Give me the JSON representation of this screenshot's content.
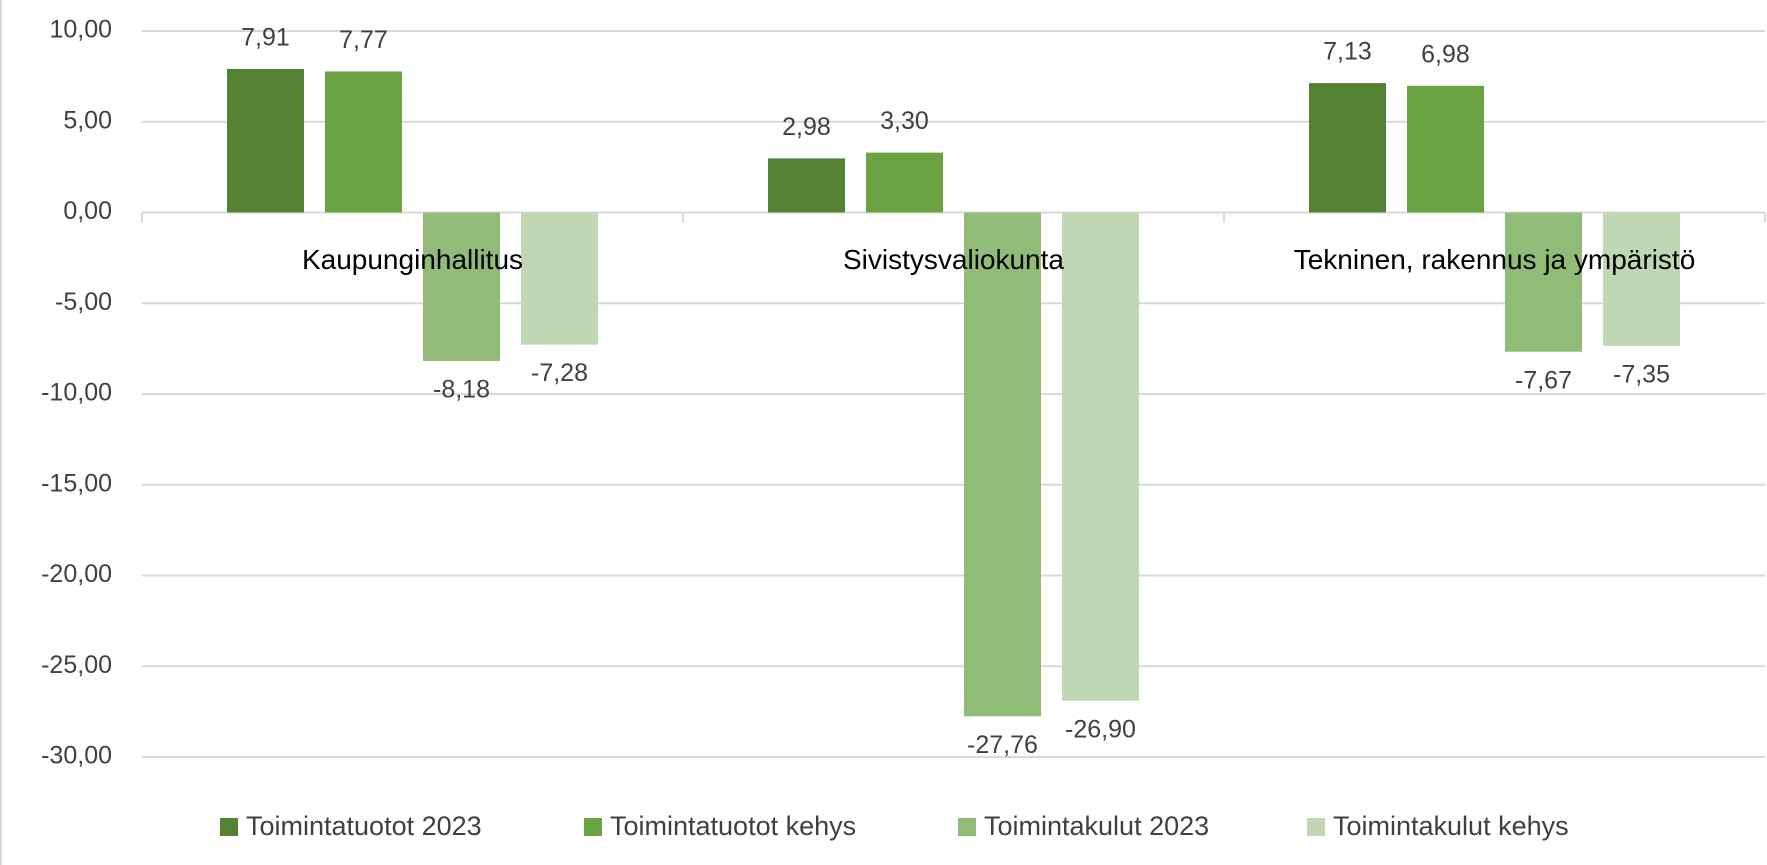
{
  "chart_data": {
    "type": "bar",
    "categories": [
      "Kaupunginhallitus",
      "Sivistysvaliokunta",
      "Tekninen, rakennus ja ympäristö"
    ],
    "series": [
      {
        "name": "Toimintatuotot 2023",
        "color": "#548235",
        "values": [
          7.91,
          2.98,
          7.13
        ],
        "value_labels": [
          "7,91",
          "2,98",
          "7,13"
        ]
      },
      {
        "name": "Toimintatuotot kehys",
        "color": "#6aa342",
        "values": [
          7.77,
          3.3,
          6.98
        ],
        "value_labels": [
          "7,77",
          "3,30",
          "6,98"
        ]
      },
      {
        "name": "Toimintakulut 2023",
        "color": "#91bc77",
        "values": [
          -8.18,
          -27.76,
          -7.67
        ],
        "value_labels": [
          "-8,18",
          "-27,76",
          "-7,67"
        ]
      },
      {
        "name": "Toimintakulut kehys",
        "color": "#bfd7b3",
        "values": [
          -7.28,
          -26.9,
          -7.35
        ],
        "value_labels": [
          "-7,28",
          "-26,90",
          "-7,35"
        ]
      }
    ],
    "ylim": [
      -30,
      10
    ],
    "yticks": [
      {
        "value": -30,
        "label": "-30,00"
      },
      {
        "value": -25,
        "label": "-25,00"
      },
      {
        "value": -20,
        "label": "-20,00"
      },
      {
        "value": -15,
        "label": "-15,00"
      },
      {
        "value": -10,
        "label": "-10,00"
      },
      {
        "value": -5,
        "label": "-5,00"
      },
      {
        "value": 0,
        "label": "0,00"
      },
      {
        "value": 5,
        "label": "5,00"
      },
      {
        "value": 10,
        "label": "10,00"
      }
    ],
    "grid": true,
    "legend": "bottom"
  }
}
